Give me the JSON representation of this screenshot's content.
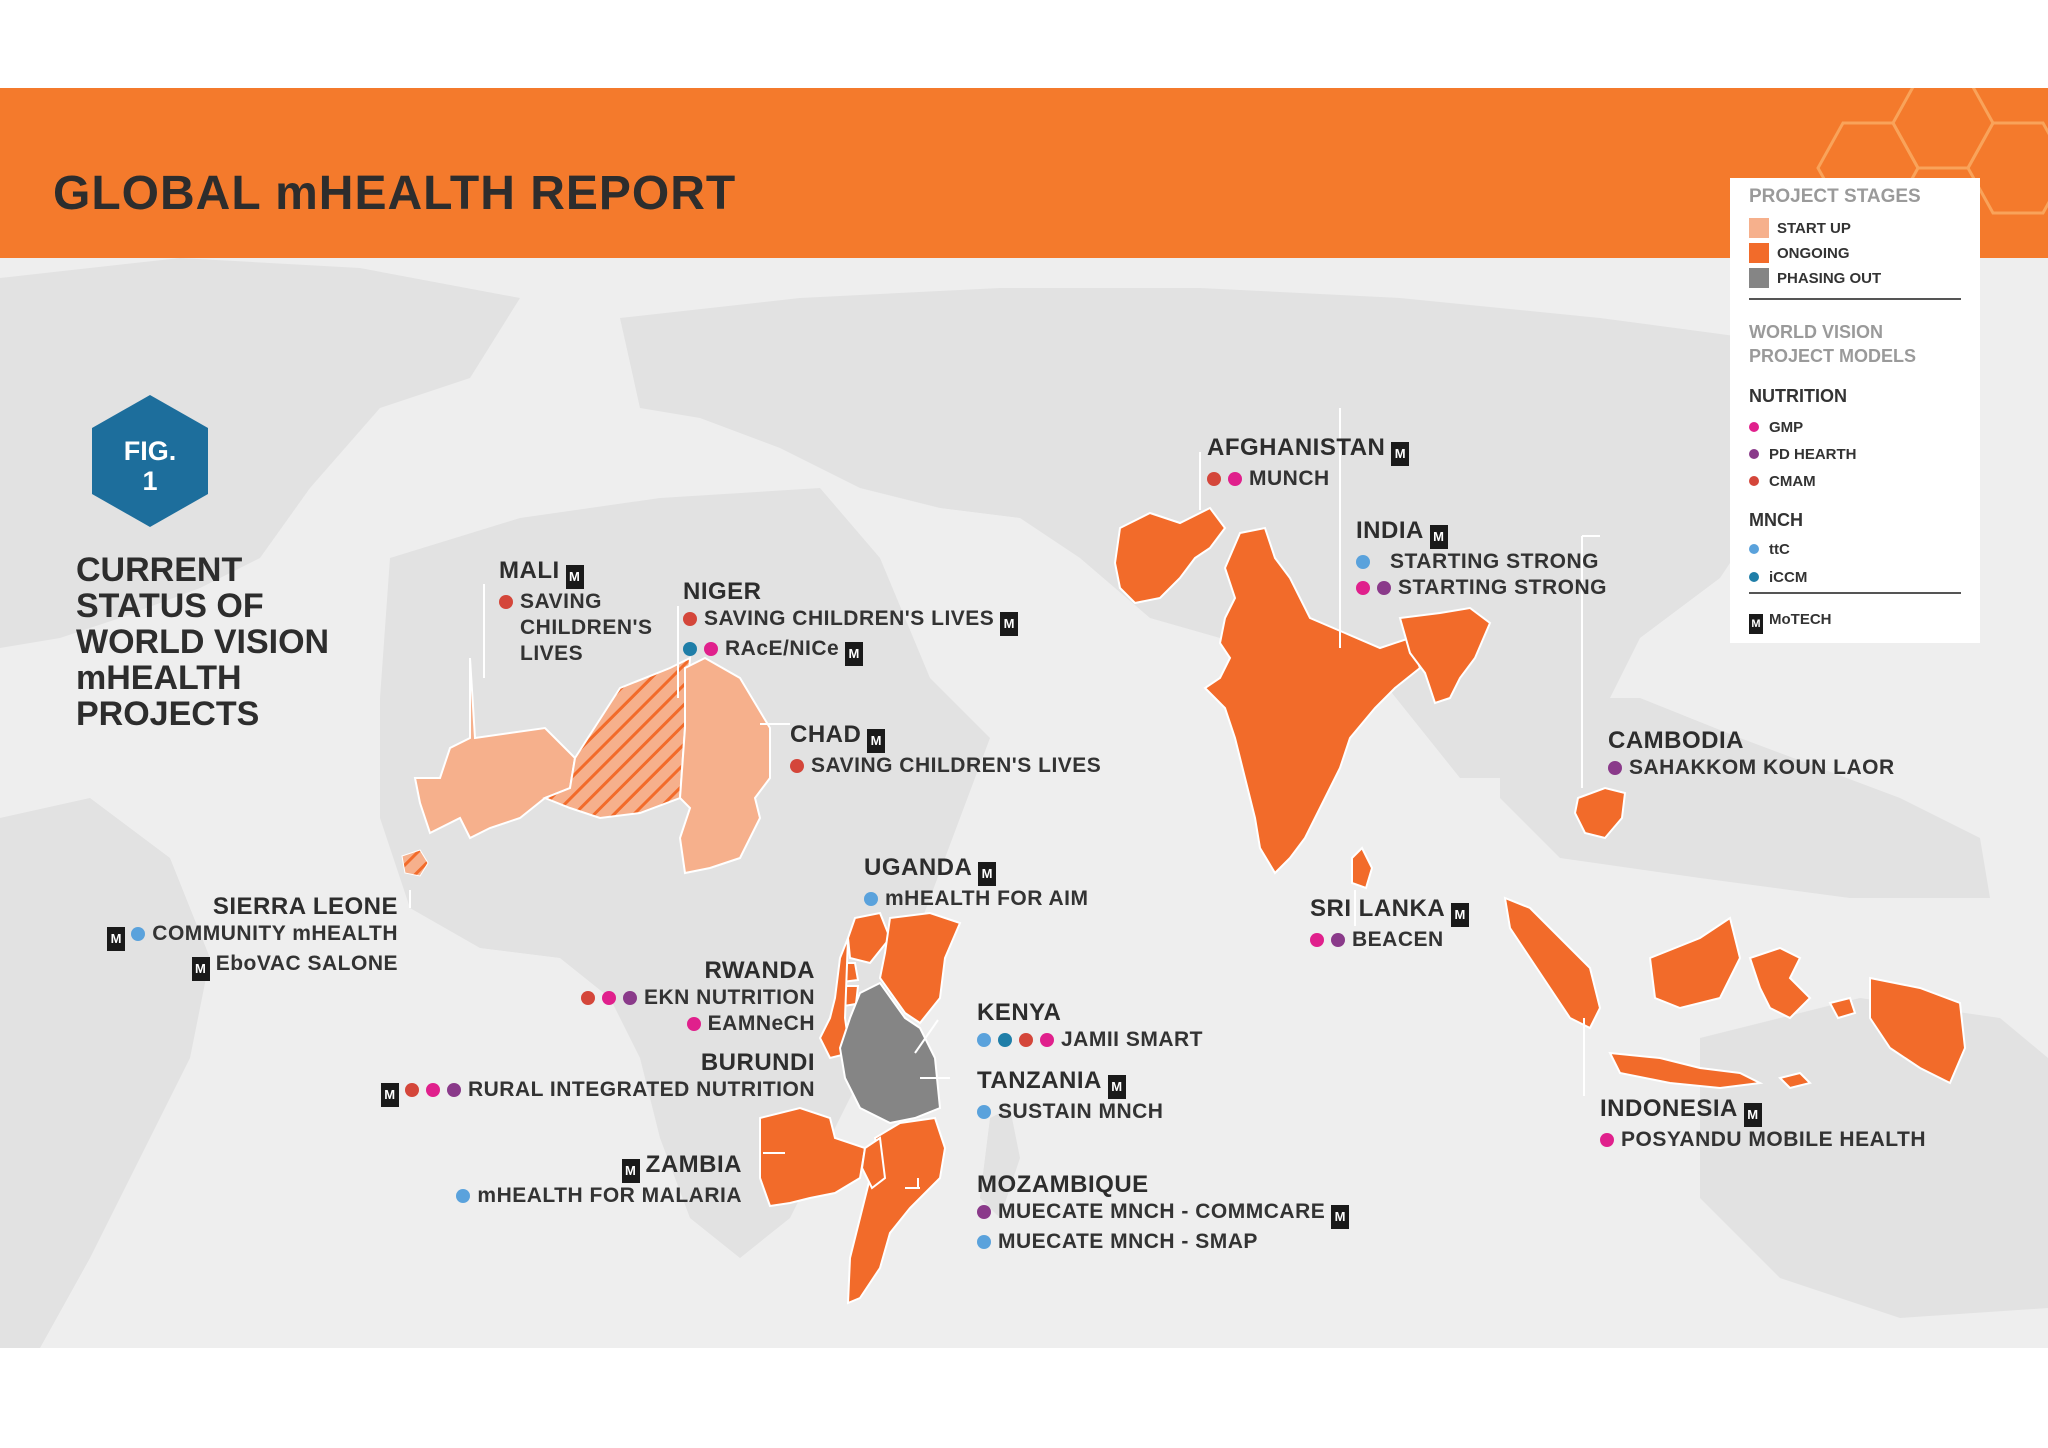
{
  "header": {
    "title": "GLOBAL mHEALTH REPORT"
  },
  "figure": {
    "badge_line1": "FIG.",
    "badge_line2": "1",
    "heading": [
      "CURRENT",
      "STATUS OF",
      "WORLD VISION",
      "mHEALTH",
      "PROJECTS"
    ]
  },
  "legend": {
    "stages_title": "PROJECT STAGES",
    "stages": [
      {
        "label": "START UP",
        "color": "#f6b08c"
      },
      {
        "label": "ONGOING",
        "color": "#f26b2a"
      },
      {
        "label": "PHASING OUT",
        "color": "#858585"
      }
    ],
    "models_title_1": "WORLD VISION",
    "models_title_2": "PROJECT MODELS",
    "nutrition_title": "NUTRITION",
    "nutrition": [
      {
        "label": "GMP",
        "color": "#e0208c"
      },
      {
        "label": "PD HEARTH",
        "color": "#8a3a8a"
      },
      {
        "label": "CMAM",
        "color": "#d4463a"
      }
    ],
    "mnch_title": "MNCH",
    "mnch": [
      {
        "label": "ttC",
        "color": "#5aa2dc"
      },
      {
        "label": "iCCM",
        "color": "#1f7ea8"
      }
    ],
    "motech_icon": "motech-icon",
    "motech_label": "MoTECH"
  },
  "countries": {
    "mali": {
      "name": "MALI",
      "projects": [
        "SAVING",
        "CHILDREN'S",
        "LIVES"
      ]
    },
    "niger": {
      "name": "NIGER",
      "projects": [
        "SAVING CHILDREN'S LIVES",
        "RAcE/NICe"
      ]
    },
    "chad": {
      "name": "CHAD",
      "projects": [
        "SAVING CHILDREN'S LIVES"
      ]
    },
    "sierra_leone": {
      "name": "SIERRA LEONE",
      "projects": [
        "COMMUNITY mHEALTH",
        "EboVAC  SALONE"
      ]
    },
    "uganda": {
      "name": "UGANDA",
      "projects": [
        "mHEALTH FOR AIM"
      ]
    },
    "rwanda": {
      "name": "RWANDA",
      "projects": [
        "EKN NUTRITION",
        "EAMNeCH"
      ]
    },
    "burundi": {
      "name": "BURUNDI",
      "projects": [
        "RURAL INTEGRATED NUTRITION"
      ]
    },
    "kenya": {
      "name": "KENYA",
      "projects": [
        "JAMII SMART"
      ]
    },
    "tanzania": {
      "name": "TANZANIA",
      "projects": [
        "SUSTAIN MNCH"
      ]
    },
    "zambia": {
      "name": "ZAMBIA",
      "projects": [
        "mHEALTH FOR MALARIA"
      ]
    },
    "mozambique": {
      "name": "MOZAMBIQUE",
      "projects": [
        "MUECATE MNCH - COMMCARE",
        "MUECATE MNCH - SMAP"
      ]
    },
    "afghanistan": {
      "name": "AFGHANISTAN",
      "projects": [
        "MUNCH"
      ]
    },
    "india": {
      "name": "INDIA",
      "projects": [
        "STARTING STRONG",
        "STARTING STRONG"
      ]
    },
    "cambodia": {
      "name": "CAMBODIA",
      "projects": [
        "SAHAKKOM KOUN LAOR"
      ]
    },
    "sri_lanka": {
      "name": "SRI LANKA",
      "projects": [
        "BEACEN"
      ]
    },
    "indonesia": {
      "name": "INDONESIA",
      "projects": [
        "POSYANDU MOBILE HEALTH"
      ]
    }
  },
  "motech_glyph": "M"
}
